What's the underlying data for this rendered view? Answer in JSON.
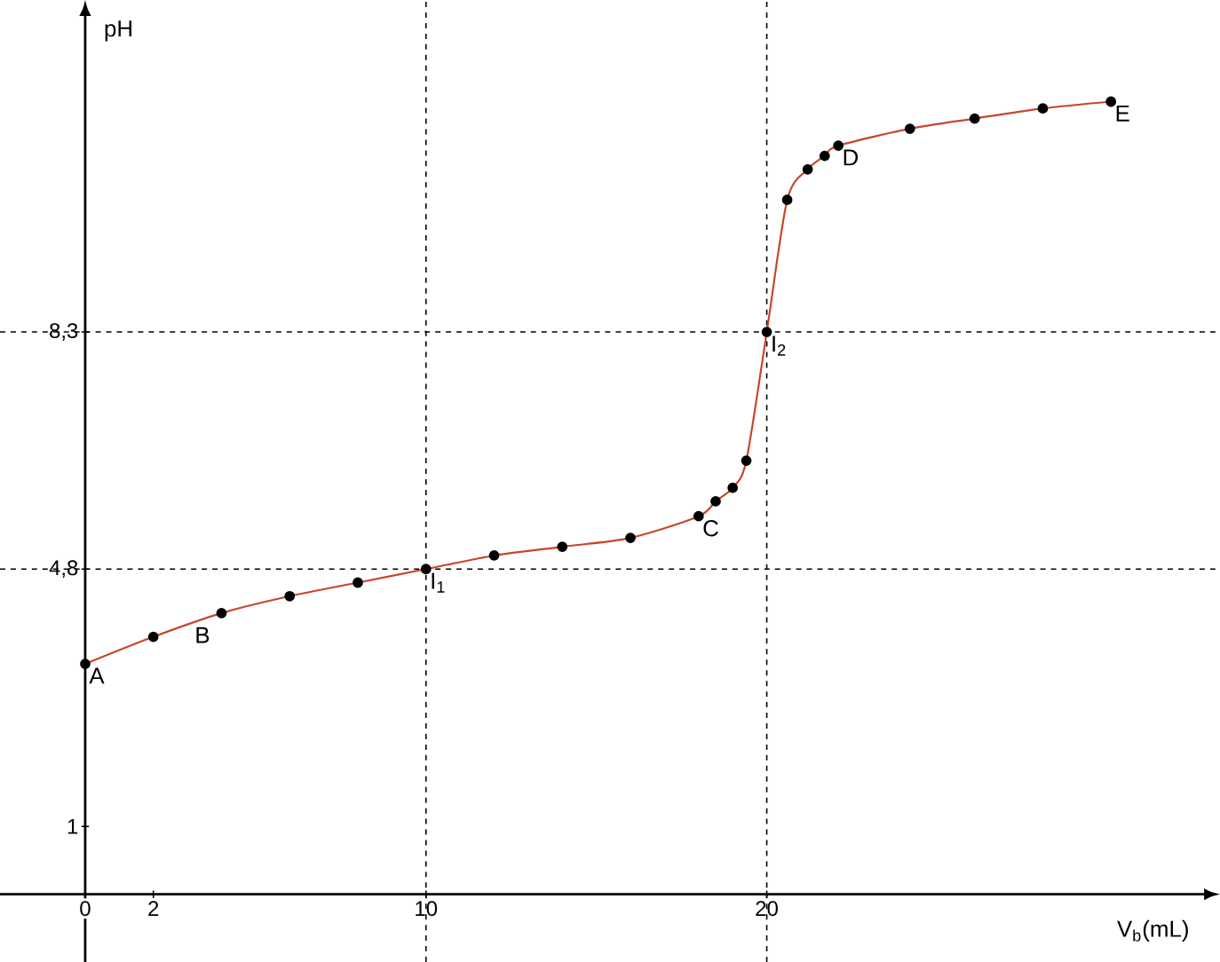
{
  "chart_data": {
    "type": "line",
    "xlabel": "V$_{b}$(mL)",
    "ylabel": "pH",
    "x": [
      0,
      2,
      4,
      6,
      8,
      10,
      12,
      14,
      16,
      18,
      18.5,
      19,
      19.4,
      20,
      20.6,
      21.2,
      21.7,
      22.1,
      24.2,
      26.1,
      28.1,
      30.1
    ],
    "series": [
      {
        "color": "#c8462c",
        "values": [
          3.4,
          3.8,
          4.15,
          4.4,
          4.6,
          4.8,
          5.0,
          5.13,
          5.26,
          5.58,
          5.8,
          6.0,
          6.4,
          8.3,
          10.25,
          10.7,
          10.9,
          11.05,
          11.3,
          11.45,
          11.6,
          11.7
        ]
      }
    ],
    "xlim": [
      -2.5,
      33.3
    ],
    "ylim": [
      -1,
      13.2
    ],
    "xticks": [
      0,
      2,
      10,
      20
    ],
    "yticks": [
      1,
      {
        "value": 4.8,
        "label": "4,8"
      },
      {
        "value": 8.3,
        "label": "8,3"
      }
    ],
    "marker": "circle",
    "line_style": "solid",
    "ref_lines": [
      {
        "axis": "y",
        "value": 4.8
      },
      {
        "axis": "y",
        "value": 8.3
      },
      {
        "axis": "x",
        "value": 10
      },
      {
        "axis": "x",
        "value": 20
      }
    ],
    "annotations": [
      {
        "text": "A",
        "x": 0,
        "y": 3.4
      },
      {
        "text": "B",
        "x": 3.1,
        "y": 4.0
      },
      {
        "text": "C",
        "x": 18,
        "y": 5.58
      },
      {
        "text": "D",
        "x": 22.1,
        "y": 11.05
      },
      {
        "text": "E",
        "x": 30.1,
        "y": 11.7
      },
      {
        "text": "I$_{1}$",
        "x": 10,
        "y": 4.8
      },
      {
        "text": "I$_{2}$",
        "x": 20,
        "y": 8.3
      }
    ]
  }
}
